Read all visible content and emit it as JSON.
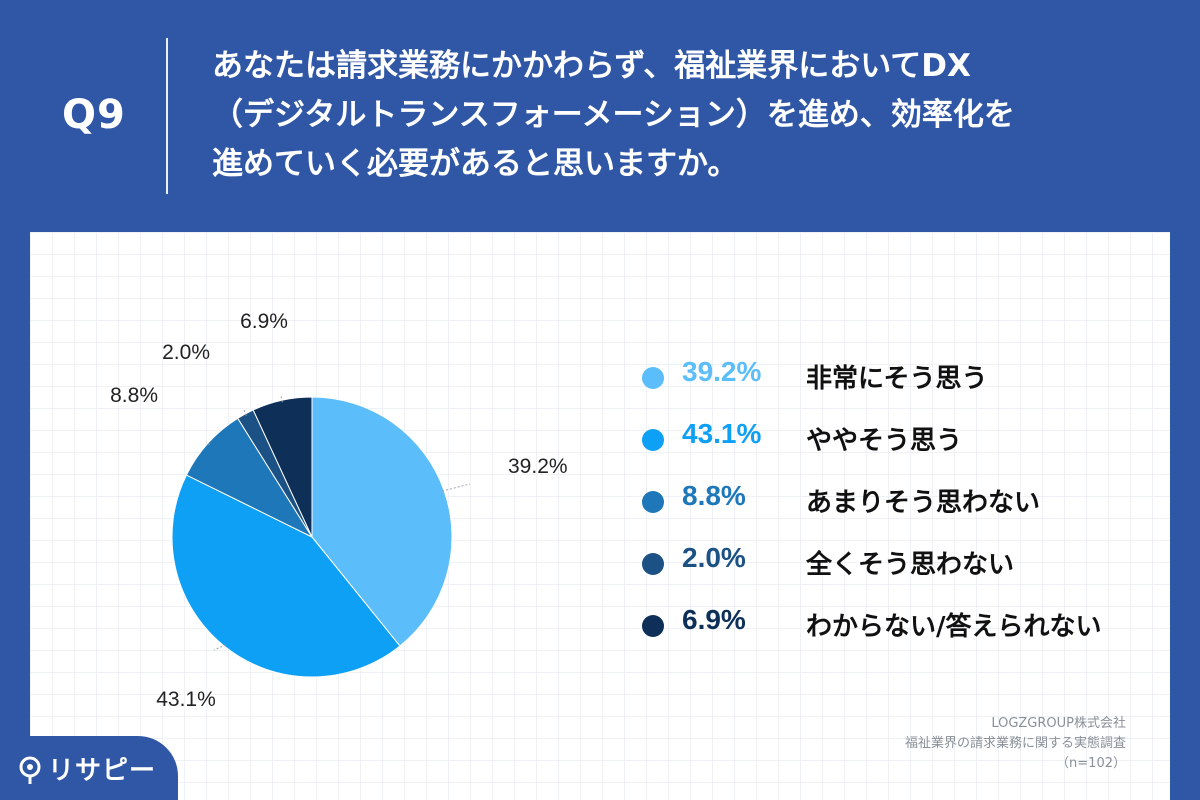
{
  "header": {
    "qnum": "Q9",
    "question_lines": [
      "あなたは請求業務にかかわらず、福祉業界においてDX",
      "（デジタルトランスフォーメーション）を進め、効率化を",
      "進めていく必要があると思いますか。"
    ]
  },
  "chart_data": {
    "type": "pie",
    "start_angle_deg": 0,
    "direction": "clockwise",
    "slices": [
      {
        "label": "非常にそう思う",
        "value": 39.2,
        "value_label": "39.2%",
        "color": "#5bbdf9"
      },
      {
        "label": "ややそう思う",
        "value": 43.1,
        "value_label": "43.1%",
        "color": "#0ea0f5"
      },
      {
        "label": "あまりそう思わない",
        "value": 8.8,
        "value_label": "8.8%",
        "color": "#1d77b9"
      },
      {
        "label": "全くそう思わない",
        "value": 2.0,
        "value_label": "2.0%",
        "color": "#1b5184"
      },
      {
        "label": "わからない/答えられない",
        "value": 6.9,
        "value_label": "6.9%",
        "color": "#0d2f58"
      }
    ]
  },
  "legend": {
    "items": [
      {
        "value": "39.2%",
        "label": "非常にそう思う",
        "color": "#5bbdf9"
      },
      {
        "value": "43.1%",
        "label": "ややそう思う",
        "color": "#0ea0f5"
      },
      {
        "value": "8.8%",
        "label": "あまりそう思わない",
        "color": "#1d77b9"
      },
      {
        "value": "2.0%",
        "label": "全くそう思わない",
        "color": "#1b5184"
      },
      {
        "value": "6.9%",
        "label": "わからない/答えられない",
        "color": "#0d2f58"
      }
    ]
  },
  "source": {
    "company": "LOGZGROUP株式会社",
    "survey": "福祉業界の請求業務に関する実態調査",
    "n": "（n=102）"
  },
  "logo": {
    "text": "リサピー"
  }
}
